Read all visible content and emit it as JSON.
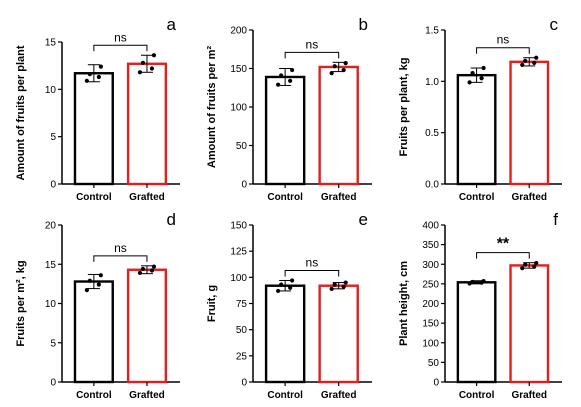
{
  "colors": {
    "control": "#000000",
    "grafted": "#e02020",
    "axis": "#000000",
    "point": "#000000"
  },
  "chart_data": [
    {
      "type": "bar",
      "panel": "a",
      "ylabel": "Amount of fruits per plant",
      "categories": [
        "Control",
        "Grafted"
      ],
      "ylim": [
        0,
        15
      ],
      "yticks": [
        0,
        5,
        10,
        15
      ],
      "values": [
        11.7,
        12.7
      ],
      "errors": [
        0.9,
        0.9
      ],
      "points": [
        [
          10.9,
          11.3,
          11.6,
          12.4
        ],
        [
          11.8,
          12.2,
          12.8,
          13.6
        ]
      ],
      "significance": "ns",
      "grid": false
    },
    {
      "type": "bar",
      "panel": "b",
      "ylabel": "Amount of fruits per m²",
      "categories": [
        "Control",
        "Grafted"
      ],
      "ylim": [
        0,
        200
      ],
      "yticks": [
        0,
        50,
        100,
        150,
        200
      ],
      "values": [
        139,
        152
      ],
      "errors": [
        11,
        6
      ],
      "points": [
        [
          129,
          134,
          141,
          148
        ],
        [
          144,
          148,
          153,
          157
        ]
      ],
      "significance": "ns",
      "grid": false
    },
    {
      "type": "bar",
      "panel": "c",
      "ylabel": "Fruits per plant, kg",
      "categories": [
        "Control",
        "Grafted"
      ],
      "ylim": [
        0,
        1.5
      ],
      "yticks": [
        "0.0",
        "0.5",
        "1.0",
        "1.5"
      ],
      "values": [
        1.06,
        1.19
      ],
      "errors": [
        0.07,
        0.04
      ],
      "points": [
        [
          0.99,
          1.03,
          1.08,
          1.13
        ],
        [
          1.16,
          1.18,
          1.2,
          1.23
        ]
      ],
      "significance": "ns",
      "grid": false
    },
    {
      "type": "bar",
      "panel": "d",
      "ylabel": "Fruits per m², kg",
      "categories": [
        "Control",
        "Grafted"
      ],
      "ylim": [
        0,
        20
      ],
      "yticks": [
        0,
        5,
        10,
        15,
        20
      ],
      "values": [
        12.8,
        14.3
      ],
      "errors": [
        0.9,
        0.5
      ],
      "points": [
        [
          11.7,
          12.4,
          12.9,
          13.6
        ],
        [
          13.9,
          14.2,
          14.4,
          14.7
        ]
      ],
      "significance": "ns",
      "grid": false
    },
    {
      "type": "bar",
      "panel": "e",
      "ylabel": "Fruit, g",
      "categories": [
        "Control",
        "Grafted"
      ],
      "ylim": [
        0,
        150
      ],
      "yticks": [
        0,
        25,
        50,
        75,
        100,
        125,
        150
      ],
      "values": [
        92,
        92
      ],
      "errors": [
        5,
        3
      ],
      "points": [
        [
          87,
          90,
          93,
          97
        ],
        [
          89,
          91,
          93,
          95
        ]
      ],
      "significance": "ns",
      "grid": false
    },
    {
      "type": "bar",
      "panel": "f",
      "ylabel": "Plant height, cm",
      "categories": [
        "Control",
        "Grafted"
      ],
      "ylim": [
        0,
        400
      ],
      "yticks": [
        0,
        50,
        100,
        150,
        200,
        250,
        300,
        350,
        400
      ],
      "values": [
        254,
        297
      ],
      "errors": [
        4,
        7
      ],
      "points": [
        [
          251,
          253,
          255,
          257
        ],
        [
          290,
          294,
          299,
          303
        ]
      ],
      "significance": "**",
      "grid": false
    }
  ]
}
